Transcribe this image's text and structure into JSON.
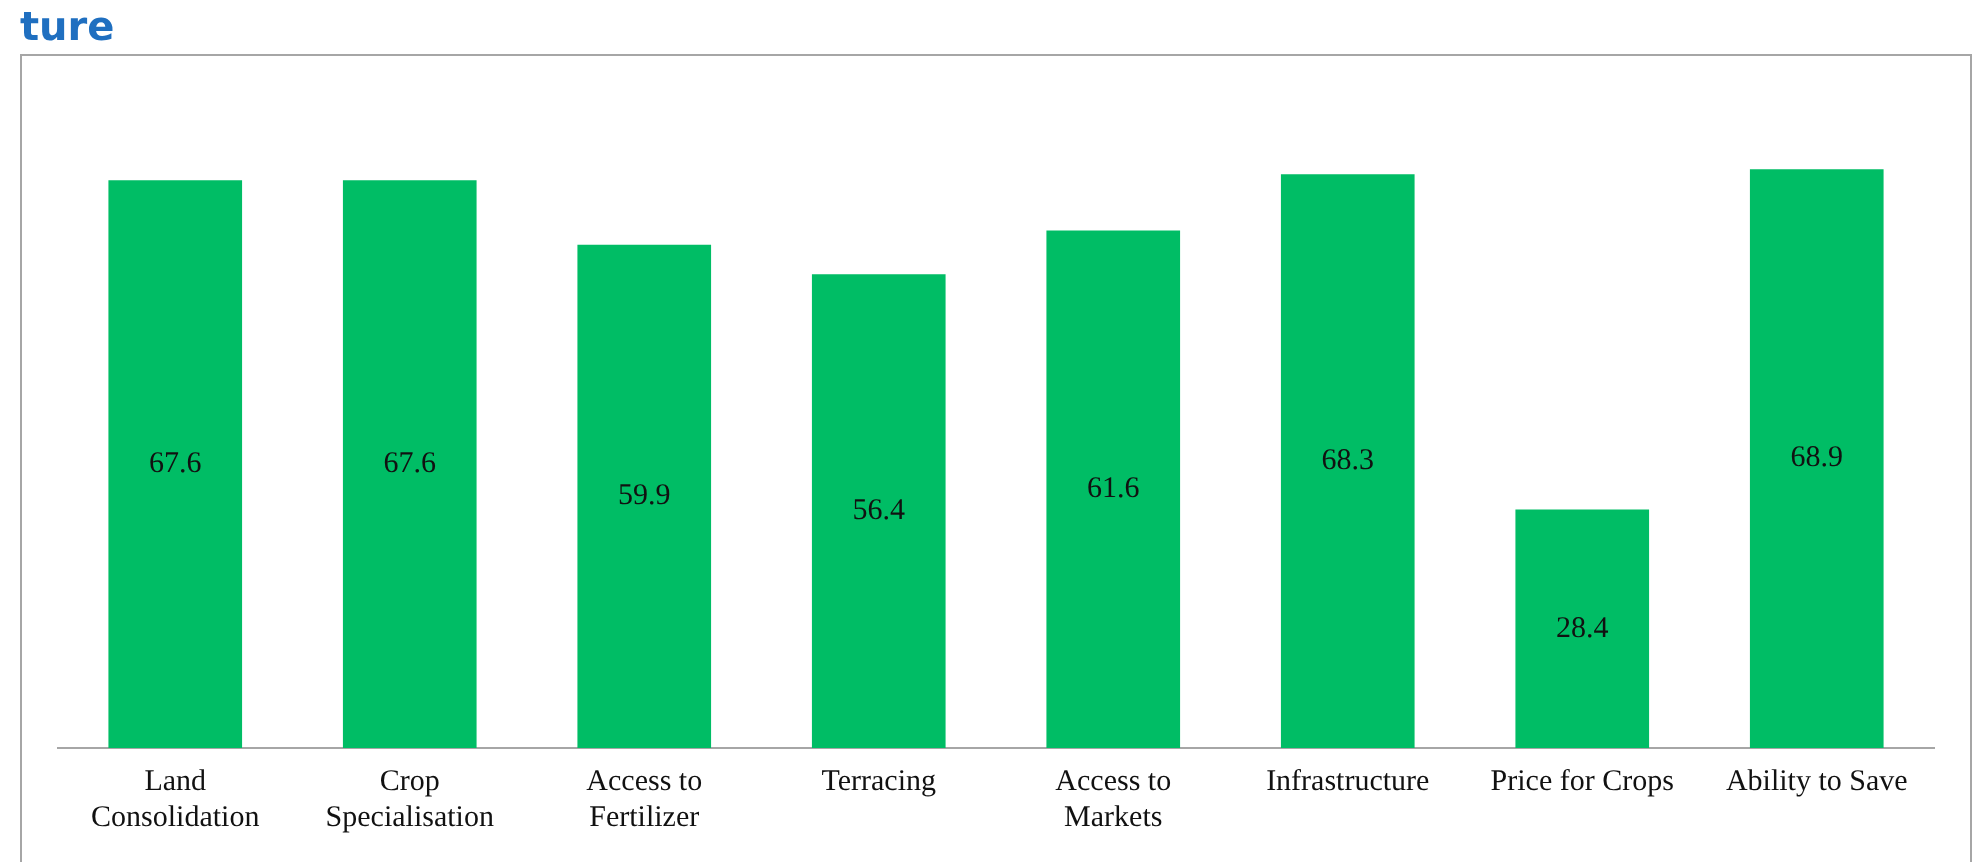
{
  "chart_data": {
    "type": "bar",
    "title": "ture",
    "categories": [
      "Land Consolidation",
      "Crop Specialisation",
      "Access to Fertilizer",
      "Terracing",
      "Access to Markets",
      "Infrastructure",
      "Price for Crops",
      "Ability to Save"
    ],
    "values": [
      67.6,
      67.6,
      59.9,
      56.4,
      61.6,
      68.3,
      28.4,
      68.9
    ],
    "color": "#00bd65",
    "data_labels": true,
    "grid": false,
    "legend": false
  }
}
